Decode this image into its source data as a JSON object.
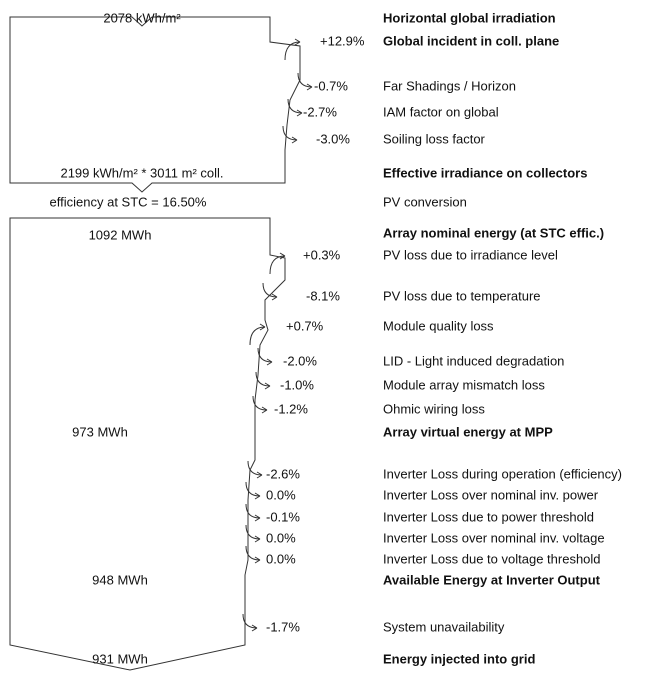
{
  "left": {
    "irradiation": "2078 kWh/m²",
    "effective": "2199 kWh/m² * 3011 m² coll.",
    "efficiency": "efficiency at STC = 16.50%",
    "energies": [
      "1092 MWh",
      "973 MWh",
      "948 MWh",
      "931 MWh"
    ]
  },
  "rows": [
    {
      "label": "Horizontal global irradiation",
      "bold": true
    },
    {
      "label": "Global incident in coll. plane",
      "value": "+12.9%",
      "bold": true
    },
    {
      "label": "Far Shadings / Horizon",
      "value": "-0.7%"
    },
    {
      "label": "IAM factor on global",
      "value": "-2.7%"
    },
    {
      "label": "Soiling loss factor",
      "value": "-3.0%"
    },
    {
      "label": "Effective irradiance on collectors",
      "bold": true
    },
    {
      "label": "PV conversion"
    },
    {
      "label": "Array nominal energy (at STC effic.)",
      "bold": true
    },
    {
      "label": "PV loss due to irradiance level",
      "value": "+0.3%"
    },
    {
      "label": "PV loss due to temperature",
      "value": "-8.1%"
    },
    {
      "label": "Module quality loss",
      "value": "+0.7%"
    },
    {
      "label": "LID - Light induced degradation",
      "value": "-2.0%"
    },
    {
      "label": "Module array mismatch loss",
      "value": "-1.0%"
    },
    {
      "label": "Ohmic wiring loss",
      "value": "-1.2%"
    },
    {
      "label": "Array virtual energy at MPP",
      "bold": true
    },
    {
      "label": "Inverter Loss during operation (efficiency)",
      "value": "-2.6%"
    },
    {
      "label": "Inverter Loss over nominal inv. power",
      "value": "0.0%"
    },
    {
      "label": "Inverter Loss due to power threshold",
      "value": "-0.1%"
    },
    {
      "label": "Inverter Loss over nominal inv. voltage",
      "value": "0.0%"
    },
    {
      "label": "Inverter Loss due to voltage threshold",
      "value": "0.0%"
    },
    {
      "label": "Available Energy at Inverter Output",
      "bold": true
    },
    {
      "label": "System unavailability",
      "value": "-1.7%"
    },
    {
      "label": "Energy injected into grid",
      "bold": true
    }
  ]
}
